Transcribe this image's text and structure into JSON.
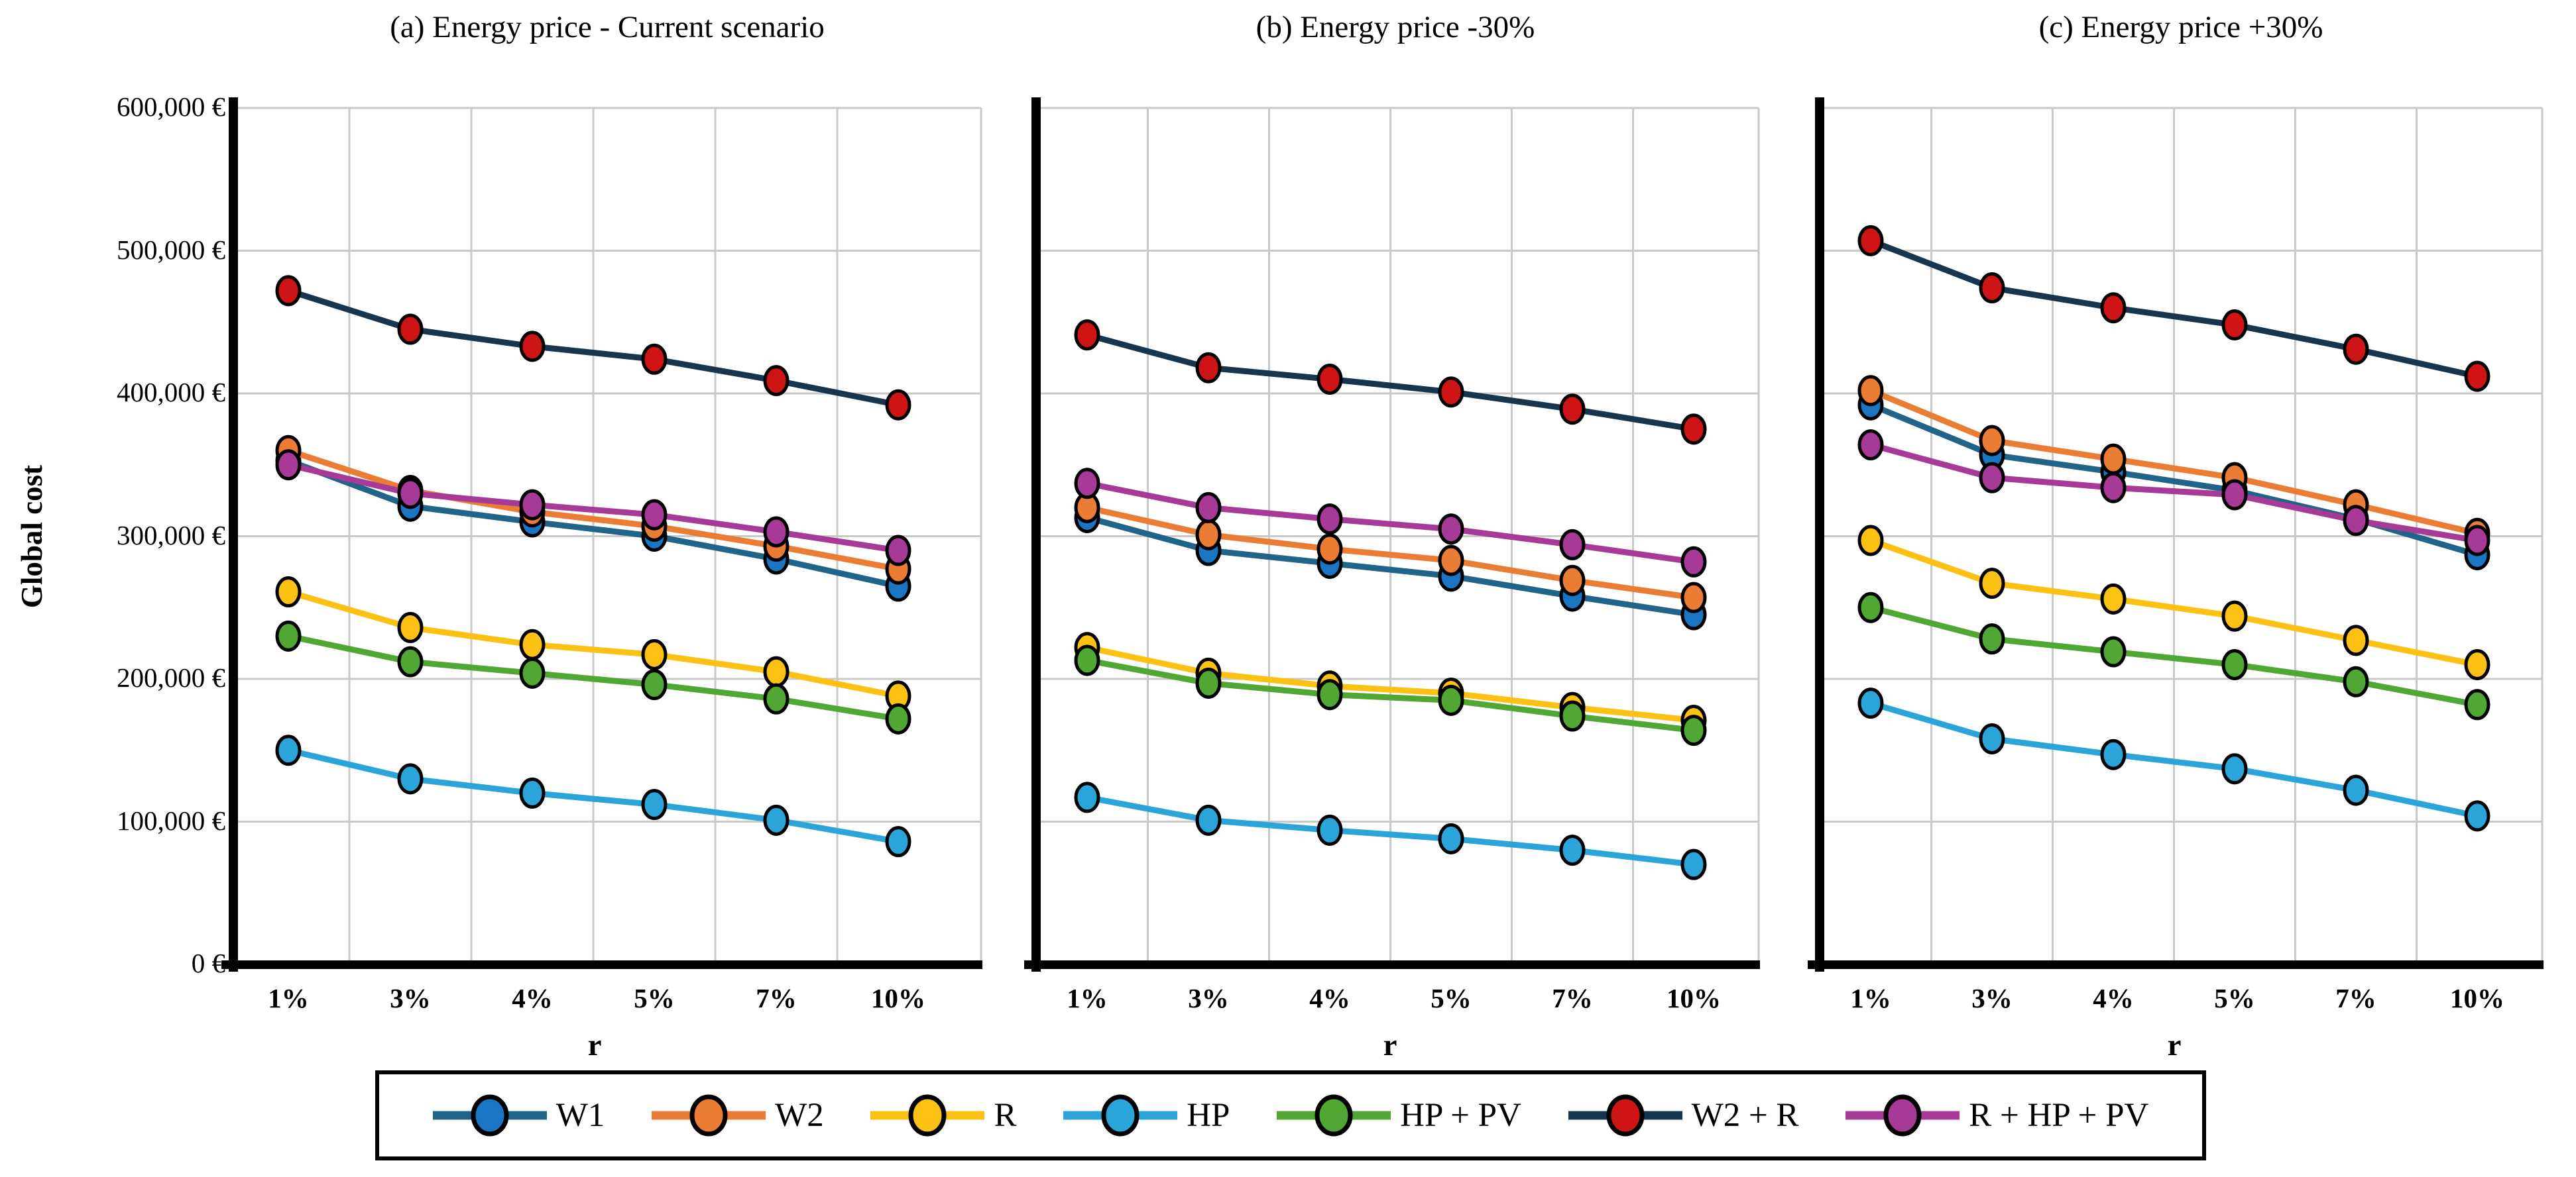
{
  "titles": {
    "a": "(a) Energy price - Current scenario",
    "b": "(b) Energy price -30%",
    "c": "(c) Energy price +30%"
  },
  "y_axis": {
    "label": "Global cost",
    "tick_labels": [
      "600,000 €",
      "500,000 €",
      "400,000 €",
      "300,000 €",
      "200,000 €",
      "100,000 €",
      "0 €"
    ],
    "tick_values": [
      600000,
      500000,
      400000,
      300000,
      200000,
      100000,
      0
    ]
  },
  "x_axis": {
    "label": "r",
    "categories": [
      "1%",
      "3%",
      "4%",
      "5%",
      "7%",
      "10%"
    ]
  },
  "legend": {
    "items": [
      {
        "label": "W1",
        "line_color": "#20648a",
        "marker_color": "#1a75c2"
      },
      {
        "label": "W2",
        "line_color": "#ea7c34",
        "marker_color": "#ea7c34"
      },
      {
        "label": "R",
        "line_color": "#fdc113",
        "marker_color": "#fdc113"
      },
      {
        "label": "HP",
        "line_color": "#2ba4da",
        "marker_color": "#2ba4da"
      },
      {
        "label": "HP + PV",
        "line_color": "#50a733",
        "marker_color": "#50a733"
      },
      {
        "label": "W2 + R",
        "line_color": "#16354e",
        "marker_color": "#cf1416"
      },
      {
        "label": "R + HP + PV",
        "line_color": "#a73a97",
        "marker_color": "#a73a97"
      }
    ]
  },
  "chart_data": [
    {
      "type": "line",
      "title": "(a) Energy price - Current scenario",
      "xlabel": "r",
      "ylabel": "Global cost",
      "ylim": [
        0,
        600000
      ],
      "grid": true,
      "categories": [
        "1%",
        "3%",
        "4%",
        "5%",
        "7%",
        "10%"
      ],
      "series": [
        {
          "name": "W1",
          "values": [
            353000,
            321000,
            310000,
            300000,
            284000,
            265000
          ]
        },
        {
          "name": "W2",
          "values": [
            360000,
            332000,
            317000,
            307000,
            293000,
            277000
          ]
        },
        {
          "name": "R",
          "values": [
            261000,
            236000,
            224000,
            217000,
            205000,
            188000
          ]
        },
        {
          "name": "HP",
          "values": [
            150000,
            130000,
            120000,
            112000,
            101000,
            86000
          ]
        },
        {
          "name": "HP + PV",
          "values": [
            230000,
            212000,
            204000,
            196000,
            186000,
            172000
          ]
        },
        {
          "name": "W2 + R",
          "values": [
            472000,
            445000,
            433000,
            424000,
            409000,
            392000
          ]
        },
        {
          "name": "R + HP + PV",
          "values": [
            350000,
            330000,
            322000,
            315000,
            303000,
            290000
          ]
        }
      ]
    },
    {
      "type": "line",
      "title": "(b) Energy price -30%",
      "xlabel": "r",
      "ylabel": "Global cost",
      "ylim": [
        0,
        600000
      ],
      "grid": true,
      "categories": [
        "1%",
        "3%",
        "4%",
        "5%",
        "7%",
        "10%"
      ],
      "series": [
        {
          "name": "W1",
          "values": [
            313000,
            290000,
            281000,
            272000,
            258000,
            245000
          ]
        },
        {
          "name": "W2",
          "values": [
            320000,
            301000,
            291000,
            283000,
            269000,
            257000
          ]
        },
        {
          "name": "R",
          "values": [
            222000,
            204000,
            195000,
            190000,
            180000,
            171000
          ]
        },
        {
          "name": "HP",
          "values": [
            117000,
            101000,
            94000,
            88000,
            80000,
            70000
          ]
        },
        {
          "name": "HP + PV",
          "values": [
            213000,
            197000,
            189000,
            185000,
            174000,
            164000
          ]
        },
        {
          "name": "W2 + R",
          "values": [
            441000,
            418000,
            410000,
            401000,
            389000,
            375000
          ]
        },
        {
          "name": "R + HP + PV",
          "values": [
            337000,
            320000,
            312000,
            305000,
            294000,
            282000
          ]
        }
      ]
    },
    {
      "type": "line",
      "title": "(c) Energy price +30%",
      "xlabel": "r",
      "ylabel": "Global cost",
      "ylim": [
        0,
        600000
      ],
      "grid": true,
      "categories": [
        "1%",
        "3%",
        "4%",
        "5%",
        "7%",
        "10%"
      ],
      "series": [
        {
          "name": "W1",
          "values": [
            392000,
            357000,
            345000,
            332000,
            312000,
            287000
          ]
        },
        {
          "name": "W2",
          "values": [
            402000,
            367000,
            354000,
            341000,
            322000,
            302000
          ]
        },
        {
          "name": "R",
          "values": [
            297000,
            267000,
            256000,
            244000,
            227000,
            210000
          ]
        },
        {
          "name": "HP",
          "values": [
            183000,
            158000,
            147000,
            137000,
            122000,
            104000
          ]
        },
        {
          "name": "HP + PV",
          "values": [
            250000,
            228000,
            219000,
            210000,
            198000,
            182000
          ]
        },
        {
          "name": "W2 + R",
          "values": [
            507000,
            474000,
            460000,
            448000,
            431000,
            412000
          ]
        },
        {
          "name": "R + HP + PV",
          "values": [
            364000,
            341000,
            334000,
            329000,
            311000,
            297000
          ]
        }
      ]
    }
  ],
  "style": {
    "grid_color": "#c9c9c9",
    "axis_color": "#000000",
    "background": "#ffffff",
    "marker_outline": "#000000"
  }
}
